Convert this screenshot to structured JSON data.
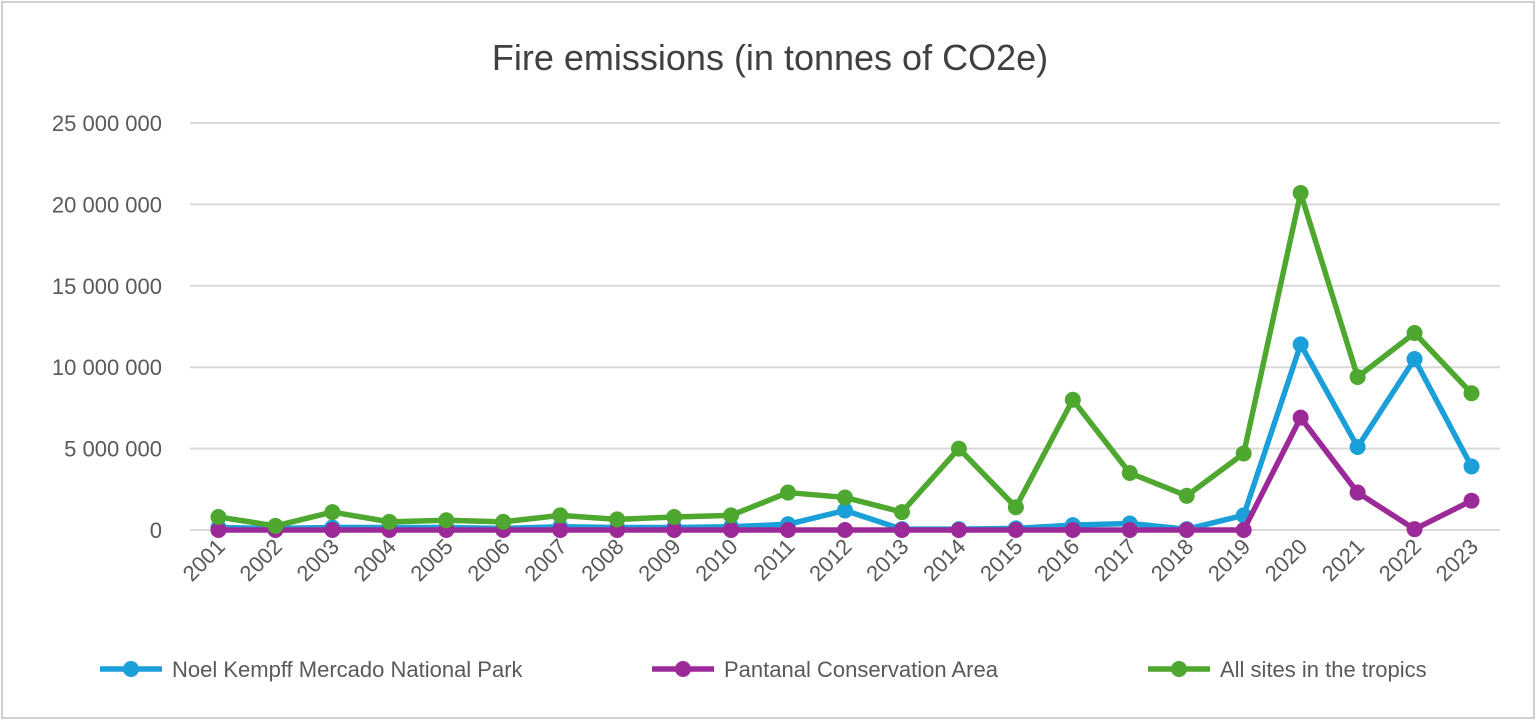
{
  "chart_data": {
    "type": "line",
    "title": "Fire emissions (in tonnes of CO2e)",
    "xlabel": "",
    "ylabel": "",
    "ylim": [
      0,
      25000000
    ],
    "yticks": [
      0,
      5000000,
      10000000,
      15000000,
      20000000,
      25000000
    ],
    "ytick_labels": [
      "0",
      "5 000 000",
      "10 000 000",
      "15 000 000",
      "20 000 000",
      "25 000 000"
    ],
    "grid": true,
    "legend_position": "bottom",
    "categories": [
      "2001",
      "2002",
      "2003",
      "2004",
      "2005",
      "2006",
      "2007",
      "2008",
      "2009",
      "2010",
      "2011",
      "2012",
      "2013",
      "2014",
      "2015",
      "2016",
      "2017",
      "2018",
      "2019",
      "2020",
      "2021",
      "2022",
      "2023"
    ],
    "series": [
      {
        "name": "Noel Kempff Mercado National Park",
        "color": "#1a9fd8",
        "values": [
          150000,
          100000,
          150000,
          150000,
          150000,
          100000,
          200000,
          150000,
          150000,
          200000,
          350000,
          1200000,
          50000,
          50000,
          100000,
          300000,
          400000,
          50000,
          900000,
          11400000,
          5100000,
          10500000,
          3900000
        ]
      },
      {
        "name": "Pantanal Conservation Area",
        "color": "#9b2a98",
        "values": [
          0,
          0,
          0,
          0,
          0,
          0,
          0,
          0,
          0,
          0,
          0,
          0,
          0,
          0,
          0,
          0,
          0,
          0,
          0,
          6900000,
          2300000,
          50000,
          1800000
        ]
      },
      {
        "name": "All sites in the tropics",
        "color": "#4ea72e",
        "values": [
          800000,
          250000,
          1100000,
          500000,
          600000,
          500000,
          900000,
          650000,
          800000,
          900000,
          2300000,
          2000000,
          1100000,
          5000000,
          1400000,
          8000000,
          3500000,
          2100000,
          4700000,
          20700000,
          9400000,
          12100000,
          8400000
        ]
      }
    ]
  }
}
